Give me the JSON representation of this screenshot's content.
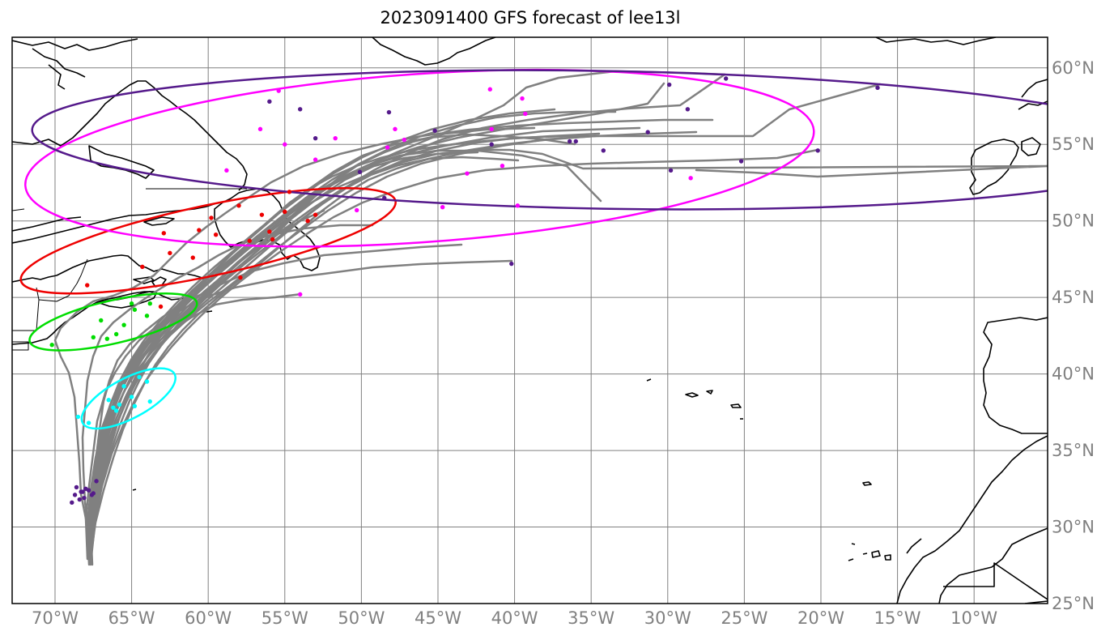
{
  "title": "2023091400 GFS forecast of lee13l",
  "map": {
    "lon_range": [
      -72.8,
      -5.2
    ],
    "lat_range": [
      25,
      62
    ],
    "gridline_color": "#808080",
    "coastline_color": "#000000",
    "track_color": "#808080",
    "lon_ticks": [
      {
        "value": -70,
        "label": "70°W"
      },
      {
        "value": -65,
        "label": "65°W"
      },
      {
        "value": -60,
        "label": "60°W"
      },
      {
        "value": -55,
        "label": "55°W"
      },
      {
        "value": -50,
        "label": "50°W"
      },
      {
        "value": -45,
        "label": "45°W"
      },
      {
        "value": -40,
        "label": "40°W"
      },
      {
        "value": -35,
        "label": "35°W"
      },
      {
        "value": -30,
        "label": "30°W"
      },
      {
        "value": -25,
        "label": "25°W"
      },
      {
        "value": -20,
        "label": "20°W"
      },
      {
        "value": -15,
        "label": "15°W"
      },
      {
        "value": -10,
        "label": "10°W"
      }
    ],
    "lat_ticks": [
      {
        "value": 60,
        "label": "60°N"
      },
      {
        "value": 55,
        "label": "55°N"
      },
      {
        "value": 50,
        "label": "50°N"
      },
      {
        "value": 45,
        "label": "45°N"
      },
      {
        "value": 40,
        "label": "40°N"
      },
      {
        "value": 35,
        "label": "35°N"
      },
      {
        "value": 30,
        "label": "30°N"
      },
      {
        "value": 25,
        "label": "25°N"
      }
    ]
  },
  "uncertainty_ellipses": [
    {
      "color": "#00ffff",
      "center": [
        -65.2,
        38.4
      ],
      "semi_axes": [
        3.4,
        1.3
      ],
      "tilt": 28
    },
    {
      "color": "#00dd00",
      "center": [
        -66.2,
        43.4
      ],
      "semi_axes": [
        5.6,
        1.4
      ],
      "tilt": 13
    },
    {
      "color": "#ee0000",
      "center": [
        -60.0,
        48.7
      ],
      "semi_axes": [
        12.5,
        2.3
      ],
      "tilt": 12
    },
    {
      "color": "#ff00ff",
      "center": [
        -46.2,
        54.1
      ],
      "semi_axes": [
        25.8,
        5.5
      ],
      "tilt": 4
    },
    {
      "color": "#551a8b",
      "center": [
        -34.2,
        55.3
      ],
      "semi_axes": [
        37.3,
        4.5
      ],
      "tilt": -1
    }
  ],
  "forecast_points": [
    {
      "color": "#551a8b",
      "points": [
        [
          -68.7,
          32.1
        ],
        [
          -68.2,
          32.3
        ],
        [
          -67.5,
          32.2
        ],
        [
          -68.9,
          31.6
        ],
        [
          -68.0,
          32.5
        ],
        [
          -67.3,
          33.0
        ],
        [
          -68.4,
          31.8
        ],
        [
          -67.8,
          32.4
        ],
        [
          -68.6,
          32.6
        ],
        [
          -68.1,
          31.9
        ],
        [
          -67.6,
          32.1
        ],
        [
          -68.3,
          32.3
        ]
      ]
    },
    {
      "color": "#00ffff",
      "points": [
        [
          -64.5,
          39.8
        ],
        [
          -65.0,
          38.5
        ],
        [
          -66.2,
          37.8
        ],
        [
          -68.5,
          37.2
        ],
        [
          -67.8,
          36.8
        ],
        [
          -64.0,
          39.5
        ],
        [
          -65.8,
          38.0
        ],
        [
          -66.5,
          38.3
        ],
        [
          -63.8,
          38.2
        ],
        [
          -66.0,
          37.6
        ],
        [
          -65.5,
          39.2
        ],
        [
          -64.8,
          37.9
        ]
      ]
    },
    {
      "color": "#00dd00",
      "points": [
        [
          -70.2,
          41.9
        ],
        [
          -67.5,
          42.4
        ],
        [
          -66.0,
          42.6
        ],
        [
          -64.8,
          44.2
        ],
        [
          -63.8,
          44.6
        ],
        [
          -65.5,
          43.2
        ],
        [
          -67.0,
          43.5
        ],
        [
          -66.6,
          42.3
        ],
        [
          -64.0,
          43.8
        ],
        [
          -65.0,
          44.6
        ]
      ]
    },
    {
      "color": "#ee0000",
      "points": [
        [
          -67.9,
          45.8
        ],
        [
          -63.1,
          44.4
        ],
        [
          -57.9,
          46.3
        ],
        [
          -61.0,
          47.6
        ],
        [
          -59.5,
          49.1
        ],
        [
          -56.5,
          50.4
        ],
        [
          -55.0,
          50.6
        ],
        [
          -53.5,
          50.0
        ],
        [
          -55.8,
          48.8
        ],
        [
          -57.3,
          48.7
        ],
        [
          -62.5,
          47.9
        ],
        [
          -64.3,
          47.0
        ],
        [
          -59.8,
          50.2
        ],
        [
          -60.6,
          49.4
        ],
        [
          -56.0,
          49.3
        ],
        [
          -58.0,
          51.0
        ],
        [
          -54.7,
          51.9
        ],
        [
          -62.9,
          49.2
        ],
        [
          -53.0,
          50.4
        ]
      ]
    },
    {
      "color": "#ff00ff",
      "points": [
        [
          -54.0,
          45.2
        ],
        [
          -55.4,
          58.5
        ],
        [
          -56.6,
          56.0
        ],
        [
          -55.0,
          55.0
        ],
        [
          -53.0,
          54.0
        ],
        [
          -58.8,
          53.3
        ],
        [
          -51.7,
          55.4
        ],
        [
          -47.8,
          56.0
        ],
        [
          -48.3,
          54.8
        ],
        [
          -47.2,
          55.3
        ],
        [
          -43.1,
          53.1
        ],
        [
          -41.5,
          56.0
        ],
        [
          -39.3,
          57.0
        ],
        [
          -39.5,
          58.0
        ],
        [
          -40.8,
          53.6
        ],
        [
          -39.8,
          51.0
        ],
        [
          -44.7,
          50.9
        ],
        [
          -28.5,
          52.8
        ],
        [
          -41.6,
          58.6
        ],
        [
          -50.3,
          50.7
        ]
      ]
    },
    {
      "color": "#551a8b",
      "points": [
        [
          -40.2,
          47.2
        ],
        [
          -56.0,
          57.8
        ],
        [
          -54.0,
          57.3
        ],
        [
          -48.2,
          57.1
        ],
        [
          -45.2,
          55.9
        ],
        [
          -41.5,
          55.0
        ],
        [
          -36.4,
          55.2
        ],
        [
          -34.2,
          54.6
        ],
        [
          -31.3,
          55.8
        ],
        [
          -29.8,
          53.3
        ],
        [
          -26.2,
          59.3
        ],
        [
          -28.7,
          57.3
        ],
        [
          -29.9,
          58.9
        ],
        [
          -25.2,
          53.9
        ],
        [
          -20.2,
          54.6
        ],
        [
          -16.3,
          58.7
        ],
        [
          -48.5,
          51.5
        ],
        [
          -50.1,
          53.2
        ],
        [
          -53.0,
          55.4
        ],
        [
          -36.0,
          55.2
        ]
      ]
    }
  ]
}
